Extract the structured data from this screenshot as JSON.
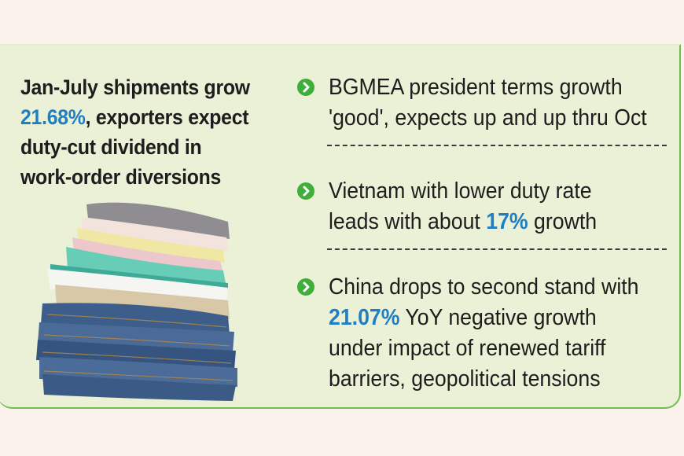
{
  "colors": {
    "background": "#fcf2ec",
    "card": "#eaf1d6",
    "card_border": "#6fbf4e",
    "highlight": "#1f7fc4",
    "bullet": "#3fae3b",
    "text": "#1d1d1d"
  },
  "headline": {
    "line1": "Jan-July shipments grow",
    "line2_highlight": "21.68%",
    "line2_rest": ", exporters expect",
    "line3": "duty-cut dividend in",
    "line4": "work-order diversions"
  },
  "illustration": {
    "icon": "stacked-clothes-jeans-icon"
  },
  "bullets": [
    {
      "icon": "chevron-right-icon",
      "line1": "BGMEA president terms growth",
      "line2": "'good', expects up and up thru Oct"
    },
    {
      "icon": "chevron-right-icon",
      "line1": "Vietnam with lower duty rate",
      "line2_pre": "leads with about ",
      "line2_highlight": "17%",
      "line2_post": " growth"
    },
    {
      "icon": "chevron-right-icon",
      "line1": "China drops to second stand with",
      "line2_highlight": "21.07%",
      "line2_rest": " YoY negative growth",
      "line3": "under impact of renewed tariff",
      "line4": "barriers, geopolitical tensions"
    }
  ]
}
